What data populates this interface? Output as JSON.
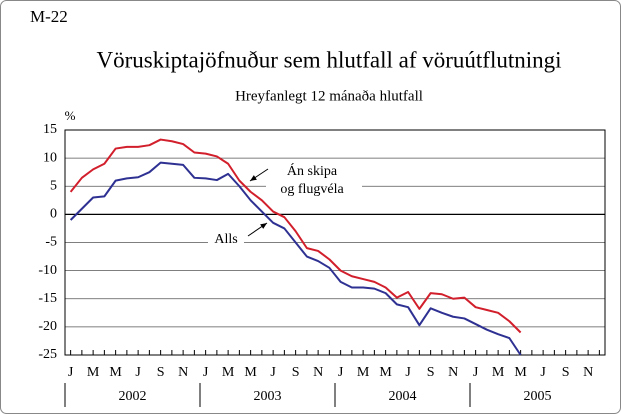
{
  "chart_data": {
    "type": "line",
    "label": "M-22",
    "title": "Vöruskiptajöfnuður sem hlutfall af vöruútflutningi",
    "subtitle": "Hreyfanlegt 12 mánaða hlutfall",
    "y_label": "%",
    "categories": [
      "J",
      null,
      "M",
      null,
      "M",
      null,
      "J",
      null,
      "S",
      null,
      "N",
      null,
      "J",
      null,
      "M",
      null,
      "M",
      null,
      "J",
      null,
      "S",
      null,
      "N",
      null,
      "J",
      null,
      "M",
      null,
      "M",
      null,
      "J",
      null,
      "S",
      null,
      "N",
      null,
      "J",
      null,
      "M",
      null,
      "M",
      null,
      "J",
      null,
      "S",
      null,
      "N",
      null
    ],
    "years": [
      "2002",
      "2003",
      "2004",
      "2005"
    ],
    "series": [
      {
        "name": "Án skipa og flugvéla",
        "color": "#d21f2c",
        "values": [
          4,
          6.5,
          8,
          9,
          11.7,
          12,
          12,
          12.3,
          13.3,
          13,
          12.5,
          11,
          10.8,
          10.3,
          9,
          6,
          4,
          2.5,
          0.5,
          -0.5,
          -3,
          -6,
          -6.5,
          -8,
          -10,
          -11,
          -11.5,
          -12,
          -13,
          -14.8,
          -13.8,
          -16.8,
          -14,
          -14.2,
          -15,
          -14.8,
          -16.5,
          -17,
          -17.5,
          -19,
          -21,
          null,
          null,
          null,
          null,
          null,
          null,
          null
        ]
      },
      {
        "name": "Alls",
        "color": "#2e3192",
        "values": [
          -1,
          1,
          3,
          3.2,
          6,
          6.4,
          6.6,
          7.5,
          9.2,
          9,
          8.8,
          6.5,
          6.4,
          6.1,
          7.2,
          5,
          2.5,
          0.5,
          -1.5,
          -2.5,
          -5,
          -7.5,
          -8.3,
          -9.5,
          -12,
          -13,
          -13,
          -13.2,
          -14,
          -16,
          -16.5,
          -19.7,
          -16.7,
          -17.5,
          -18.2,
          -18.5,
          -19.5,
          -20.5,
          -21.3,
          -22,
          -25,
          null,
          null,
          null,
          null,
          null,
          null,
          null
        ]
      }
    ],
    "annotations": [
      "Án skipa",
      "og flugvéla",
      "Alls"
    ],
    "ylim": [
      -25,
      15
    ],
    "yticks": [
      -25,
      -20,
      -15,
      -10,
      -5,
      0,
      5,
      10,
      15
    ],
    "grid": true
  }
}
